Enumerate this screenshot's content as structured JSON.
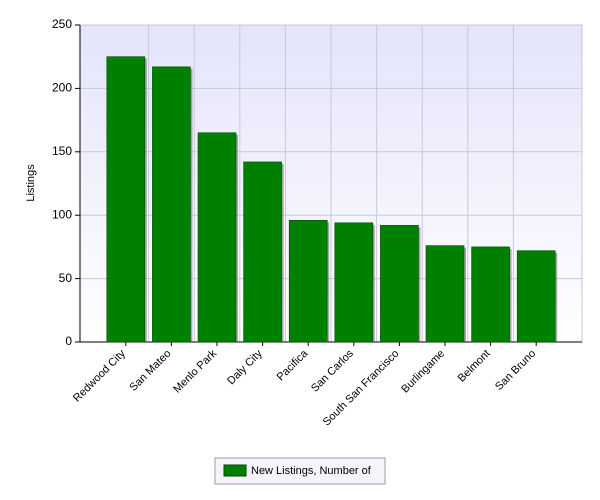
{
  "chart_data": {
    "type": "bar",
    "y_label": "Listings",
    "categories": [
      "Redwood City",
      "San Mateo",
      "Menlo Park",
      "Daly City",
      "Pacifica",
      "San Carlos",
      "South San Francisco",
      "Burlingame",
      "Belmont",
      "San Bruno"
    ],
    "series": [
      {
        "name": "New Listings, Number of",
        "color": "#008000",
        "values": [
          225,
          217,
          165,
          142,
          96,
          94,
          92,
          76,
          75,
          72
        ]
      }
    ],
    "ylim": [
      0,
      250
    ],
    "yticks": [
      0,
      50,
      100,
      150,
      200,
      250
    ],
    "grid": true,
    "legend": "bottom"
  }
}
